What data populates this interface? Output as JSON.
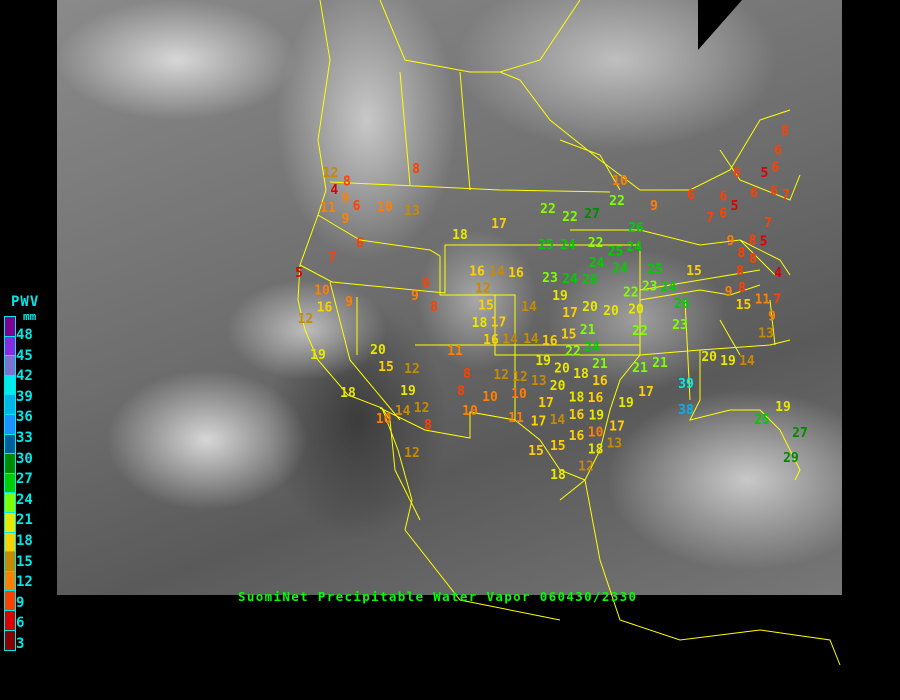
{
  "legend": {
    "title": "PWV",
    "unit": "mm",
    "labels": [
      "48",
      "45",
      "42",
      "39",
      "36",
      "33",
      "30",
      "27",
      "24",
      "21",
      "18",
      "15",
      "12",
      "9",
      "6",
      "3"
    ],
    "colors": [
      "#800090",
      "#8a2be2",
      "#8070d0",
      "#00ecec",
      "#00b4e8",
      "#1e90ff",
      "#005f9a",
      "#008a00",
      "#00cc00",
      "#80ff00",
      "#e8e800",
      "#ffd000",
      "#c88a00",
      "#ff8000",
      "#ff4000",
      "#dd0000",
      "#8a0000"
    ]
  },
  "caption": "SuomiNet Precipitable Water Vapor 060430/2330",
  "colors": {
    "map_lines": "#ffff00",
    "caption": "#00ff00",
    "legend_text": "#00e8e8",
    "background": "#000000"
  },
  "stations": [
    8,
    12,
    8,
    4,
    9,
    11,
    6,
    10,
    13,
    9,
    6,
    18,
    7,
    5,
    6,
    10,
    16,
    9,
    9,
    8,
    12,
    16,
    12,
    15,
    18,
    17,
    16,
    14,
    20,
    19,
    11,
    15,
    12,
    8,
    8,
    19,
    18,
    14,
    12,
    10,
    8,
    10,
    10,
    12,
    12,
    13,
    10,
    11,
    17,
    12,
    15,
    17,
    14,
    16,
    22,
    22,
    27,
    25,
    24,
    22,
    25,
    24,
    23,
    24,
    26,
    24,
    24,
    26,
    22,
    10,
    9,
    6,
    6,
    6,
    5,
    7,
    25,
    23,
    24,
    22,
    26,
    15,
    19,
    14,
    20,
    20,
    20,
    17,
    14,
    16,
    15,
    21,
    22,
    24,
    21,
    19,
    20,
    18,
    16,
    20,
    22,
    23,
    21,
    21,
    17,
    19,
    18,
    16,
    19,
    17,
    14,
    16,
    10,
    16,
    18,
    13,
    17,
    15,
    12,
    18,
    9,
    8,
    5,
    8,
    8,
    8,
    8,
    9,
    15,
    11,
    7,
    9,
    13,
    20,
    19,
    14,
    39,
    38,
    19,
    25,
    27,
    29,
    4,
    6,
    6,
    7,
    6,
    5,
    6,
    8,
    6,
    7
  ]
}
